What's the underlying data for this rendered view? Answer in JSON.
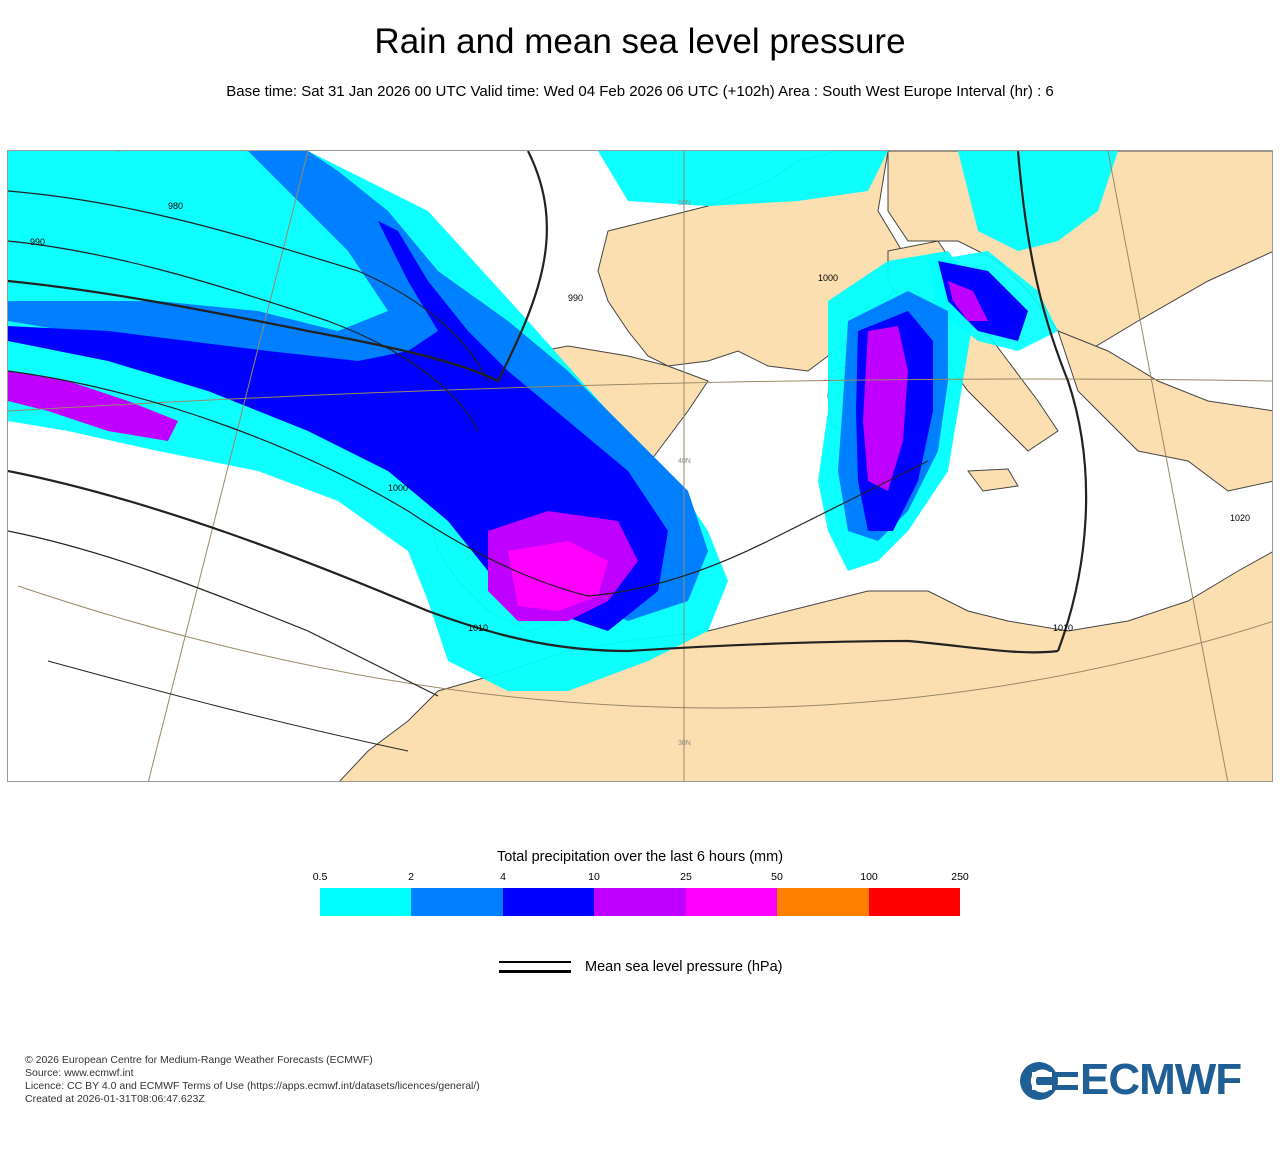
{
  "header": {
    "title": "Rain and mean sea level pressure",
    "subtitle": "Base time: Sat 31 Jan 2026 00 UTC Valid time: Wed 04 Feb 2026 06 UTC (+102h) Area : South West Europe Interval (hr) : 6"
  },
  "map": {
    "isobar_labels": [
      "980",
      "990",
      "990",
      "1000",
      "1000",
      "1010",
      "1010",
      "1020"
    ],
    "graticule_labels": [
      "40N",
      "30N",
      "50N"
    ],
    "colors": {
      "land": "#fbdfb0",
      "sea": "#ffffff",
      "coast": "#333333"
    }
  },
  "legend": {
    "title": "Total precipitation over the last 6 hours (mm)",
    "ticks": [
      "0.5",
      "2",
      "4",
      "10",
      "25",
      "50",
      "100",
      "250"
    ],
    "colors": [
      "#00ffff",
      "#0080ff",
      "#0000ff",
      "#c000ff",
      "#ff00ff",
      "#ff8000",
      "#ff0000"
    ],
    "msl_label": "Mean sea level pressure (hPa)"
  },
  "footer": {
    "lines": [
      "© 2026 European Centre for Medium-Range Weather Forecasts (ECMWF)",
      "Source: www.ecmwf.int",
      "Licence: CC BY 4.0 and ECMWF Terms of Use (https://apps.ecmwf.int/datasets/licences/general/)",
      "Created at 2026-01-31T08:06:47.623Z"
    ],
    "logo_text": "ECMWF",
    "logo_color": "#1f5f95"
  }
}
